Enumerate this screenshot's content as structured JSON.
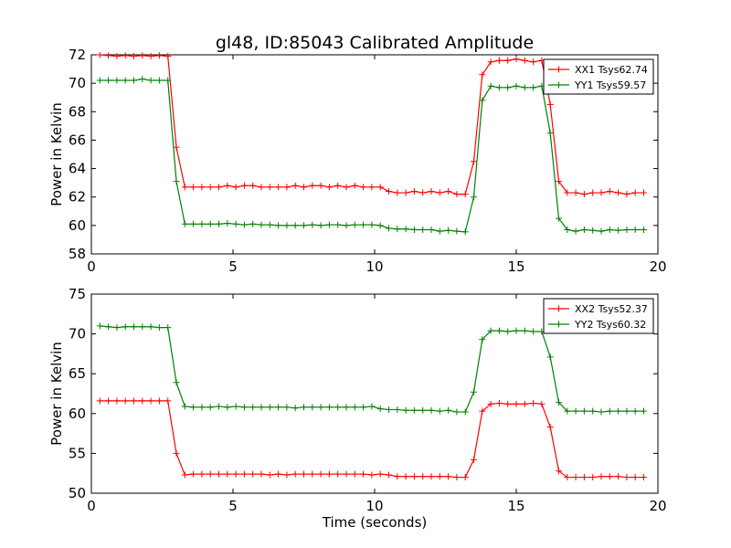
{
  "title": "gl48, ID:85043 Calibrated Amplitude",
  "xlabel": "Time (seconds)",
  "colors": {
    "red": "#ff0000",
    "green": "#008000"
  },
  "chart_data": [
    {
      "type": "line",
      "ylabel": "Power in Kelvin",
      "xlim": [
        0,
        20
      ],
      "ylim": [
        58,
        72
      ],
      "xticks": [
        0,
        5,
        10,
        15,
        20
      ],
      "yticks": [
        58,
        60,
        62,
        64,
        66,
        68,
        70,
        72
      ],
      "legend_position": "top-right",
      "grid": false,
      "marker": "+",
      "series": [
        {
          "name": "XX1 Tsys62.74",
          "color": "#ff0000",
          "x": [
            0.3,
            0.6,
            0.9,
            1.2,
            1.5,
            1.8,
            2.1,
            2.4,
            2.7,
            3.0,
            3.3,
            3.6,
            3.9,
            4.2,
            4.5,
            4.8,
            5.1,
            5.4,
            5.7,
            6.0,
            6.3,
            6.6,
            6.9,
            7.2,
            7.5,
            7.8,
            8.1,
            8.4,
            8.7,
            9.0,
            9.3,
            9.6,
            9.9,
            10.2,
            10.5,
            10.8,
            11.1,
            11.4,
            11.7,
            12.0,
            12.3,
            12.6,
            12.9,
            13.2,
            13.5,
            13.8,
            14.1,
            14.4,
            14.7,
            15.0,
            15.3,
            15.6,
            15.9,
            16.2,
            16.5,
            16.8,
            17.1,
            17.4,
            17.7,
            18.0,
            18.3,
            18.6,
            18.9,
            19.2,
            19.5
          ],
          "values": [
            72.0,
            71.95,
            71.9,
            71.95,
            71.9,
            71.95,
            71.9,
            71.95,
            71.9,
            65.5,
            62.7,
            62.7,
            62.7,
            62.7,
            62.7,
            62.8,
            62.7,
            62.8,
            62.8,
            62.7,
            62.7,
            62.7,
            62.7,
            62.8,
            62.7,
            62.8,
            62.8,
            62.7,
            62.8,
            62.7,
            62.8,
            62.7,
            62.7,
            62.7,
            62.4,
            62.3,
            62.3,
            62.4,
            62.3,
            62.4,
            62.3,
            62.4,
            62.2,
            62.2,
            64.5,
            70.6,
            71.5,
            71.6,
            71.6,
            71.7,
            71.6,
            71.5,
            71.6,
            68.5,
            63.1,
            62.3,
            62.3,
            62.2,
            62.3,
            62.3,
            62.4,
            62.3,
            62.2,
            62.3,
            62.3
          ]
        },
        {
          "name": "YY1 Tsys59.57",
          "color": "#008000",
          "x": [
            0.3,
            0.6,
            0.9,
            1.2,
            1.5,
            1.8,
            2.1,
            2.4,
            2.7,
            3.0,
            3.3,
            3.6,
            3.9,
            4.2,
            4.5,
            4.8,
            5.1,
            5.4,
            5.7,
            6.0,
            6.3,
            6.6,
            6.9,
            7.2,
            7.5,
            7.8,
            8.1,
            8.4,
            8.7,
            9.0,
            9.3,
            9.6,
            9.9,
            10.2,
            10.5,
            10.8,
            11.1,
            11.4,
            11.7,
            12.0,
            12.3,
            12.6,
            12.9,
            13.2,
            13.5,
            13.8,
            14.1,
            14.4,
            14.7,
            15.0,
            15.3,
            15.6,
            15.9,
            16.2,
            16.5,
            16.8,
            17.1,
            17.4,
            17.7,
            18.0,
            18.3,
            18.6,
            18.9,
            19.2,
            19.5
          ],
          "values": [
            70.2,
            70.2,
            70.2,
            70.2,
            70.2,
            70.3,
            70.2,
            70.2,
            70.2,
            63.1,
            60.1,
            60.1,
            60.1,
            60.1,
            60.1,
            60.15,
            60.1,
            60.05,
            60.1,
            60.05,
            60.05,
            60.0,
            60.0,
            60.0,
            60.0,
            60.05,
            60.0,
            60.05,
            60.05,
            60.0,
            60.05,
            60.05,
            60.05,
            60.0,
            59.8,
            59.75,
            59.75,
            59.7,
            59.7,
            59.7,
            59.6,
            59.65,
            59.6,
            59.55,
            62.0,
            68.8,
            69.8,
            69.7,
            69.7,
            69.8,
            69.7,
            69.7,
            69.8,
            66.5,
            60.5,
            59.7,
            59.6,
            59.7,
            59.65,
            59.6,
            59.7,
            59.65,
            59.7,
            59.7,
            59.7
          ]
        }
      ]
    },
    {
      "type": "line",
      "ylabel": "Power in Kelvin",
      "xlabel": "Time (seconds)",
      "xlim": [
        0,
        20
      ],
      "ylim": [
        50,
        75
      ],
      "xticks": [
        0,
        5,
        10,
        15,
        20
      ],
      "yticks": [
        50,
        55,
        60,
        65,
        70,
        75
      ],
      "legend_position": "top-right",
      "grid": false,
      "marker": "+",
      "series": [
        {
          "name": "XX2 Tsys52.37",
          "color": "#ff0000",
          "x": [
            0.3,
            0.6,
            0.9,
            1.2,
            1.5,
            1.8,
            2.1,
            2.4,
            2.7,
            3.0,
            3.3,
            3.6,
            3.9,
            4.2,
            4.5,
            4.8,
            5.1,
            5.4,
            5.7,
            6.0,
            6.3,
            6.6,
            6.9,
            7.2,
            7.5,
            7.8,
            8.1,
            8.4,
            8.7,
            9.0,
            9.3,
            9.6,
            9.9,
            10.2,
            10.5,
            10.8,
            11.1,
            11.4,
            11.7,
            12.0,
            12.3,
            12.6,
            12.9,
            13.2,
            13.5,
            13.8,
            14.1,
            14.4,
            14.7,
            15.0,
            15.3,
            15.6,
            15.9,
            16.2,
            16.5,
            16.8,
            17.1,
            17.4,
            17.7,
            18.0,
            18.3,
            18.6,
            18.9,
            19.2,
            19.5
          ],
          "values": [
            61.6,
            61.6,
            61.6,
            61.6,
            61.6,
            61.6,
            61.6,
            61.6,
            61.6,
            55.0,
            52.3,
            52.4,
            52.4,
            52.4,
            52.4,
            52.4,
            52.4,
            52.4,
            52.4,
            52.4,
            52.3,
            52.4,
            52.3,
            52.4,
            52.4,
            52.4,
            52.4,
            52.4,
            52.4,
            52.4,
            52.4,
            52.4,
            52.3,
            52.4,
            52.3,
            52.1,
            52.1,
            52.1,
            52.1,
            52.1,
            52.1,
            52.1,
            52.0,
            52.0,
            54.2,
            60.3,
            61.2,
            61.3,
            61.2,
            61.2,
            61.2,
            61.3,
            61.2,
            58.3,
            52.8,
            52.0,
            52.0,
            52.0,
            52.0,
            52.1,
            52.1,
            52.1,
            52.0,
            52.0,
            52.0
          ]
        },
        {
          "name": "YY2 Tsys60.32",
          "color": "#008000",
          "x": [
            0.3,
            0.6,
            0.9,
            1.2,
            1.5,
            1.8,
            2.1,
            2.4,
            2.7,
            3.0,
            3.3,
            3.6,
            3.9,
            4.2,
            4.5,
            4.8,
            5.1,
            5.4,
            5.7,
            6.0,
            6.3,
            6.6,
            6.9,
            7.2,
            7.5,
            7.8,
            8.1,
            8.4,
            8.7,
            9.0,
            9.3,
            9.6,
            9.9,
            10.2,
            10.5,
            10.8,
            11.1,
            11.4,
            11.7,
            12.0,
            12.3,
            12.6,
            12.9,
            13.2,
            13.5,
            13.8,
            14.1,
            14.4,
            14.7,
            15.0,
            15.3,
            15.6,
            15.9,
            16.2,
            16.5,
            16.8,
            17.1,
            17.4,
            17.7,
            18.0,
            18.3,
            18.6,
            18.9,
            19.2,
            19.5
          ],
          "values": [
            71.0,
            70.9,
            70.8,
            70.9,
            70.9,
            70.9,
            70.9,
            70.8,
            70.8,
            63.9,
            60.9,
            60.8,
            60.8,
            60.8,
            60.9,
            60.8,
            60.9,
            60.8,
            60.8,
            60.8,
            60.8,
            60.8,
            60.8,
            60.7,
            60.8,
            60.8,
            60.8,
            60.8,
            60.8,
            60.8,
            60.8,
            60.8,
            60.9,
            60.6,
            60.5,
            60.5,
            60.4,
            60.4,
            60.4,
            60.4,
            60.3,
            60.4,
            60.2,
            60.2,
            62.7,
            69.3,
            70.4,
            70.4,
            70.3,
            70.4,
            70.4,
            70.3,
            70.3,
            67.1,
            61.4,
            60.3,
            60.3,
            60.3,
            60.3,
            60.2,
            60.3,
            60.3,
            60.3,
            60.3,
            60.3
          ]
        }
      ]
    }
  ]
}
